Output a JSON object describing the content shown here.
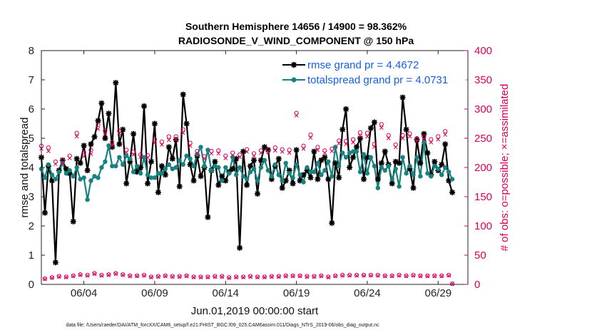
{
  "chart_data": {
    "type": "line",
    "title": "Southern Hemisphere 14656 / 14900 = 98.362%",
    "subtitle": "RADIOSONDE_V_WIND_COMPONENT @ 150 hPa",
    "xlabel": "Jun.01,2019 00:00:00 start",
    "ylabel": "rmse and totalspread",
    "y2label": "# of obs: o=possible; ×=assimilated",
    "footnote": "data file: /Users/raeder/DAI/ATM_forcXX/CAM6_setup/f.e21.FHIST_BGC.f09_025.CAM6assim.011/Diags_NTrS_2019-06/obs_diag_output.nc",
    "xlim": [
      1,
      31.1
    ],
    "ylim": [
      0,
      8
    ],
    "y2lim": [
      0,
      400
    ],
    "x_ticks": [
      4,
      9,
      14,
      19,
      24,
      29
    ],
    "x_tick_labels": [
      "06/04",
      "06/09",
      "06/14",
      "06/19",
      "06/24",
      "06/29"
    ],
    "y_ticks": [
      "0",
      "1",
      "2",
      "3",
      "4",
      "5",
      "6",
      "7",
      "8"
    ],
    "y2_ticks": [
      "0",
      "50",
      "100",
      "150",
      "200",
      "250",
      "300",
      "350",
      "400"
    ],
    "x_start": 1.0,
    "x_step": 0.25,
    "series": [
      {
        "name": "rmse grand pr = 4.4672",
        "color": "#000000",
        "values": [
          4.35,
          2.45,
          4.05,
          3.55,
          0.75,
          3.9,
          4.25,
          3.95,
          3.8,
          2.15,
          4.3,
          4.15,
          4.75,
          3.9,
          4.8,
          5.05,
          5.6,
          6.2,
          5.0,
          5.85,
          4.7,
          6.9,
          4.8,
          5.3,
          3.45,
          4.2,
          5.15,
          3.85,
          4.0,
          6.1,
          3.45,
          4.2,
          5.5,
          3.15,
          4.05,
          3.75,
          4.7,
          4.3,
          4.95,
          3.35,
          6.5,
          5.5,
          4.1,
          3.55,
          4.4,
          3.7,
          4.0,
          2.3,
          3.9,
          4.2,
          3.4,
          3.7,
          3.55,
          3.85,
          3.95,
          4.3,
          1.25,
          4.55,
          3.4,
          4.05,
          4.25,
          3.1,
          4.25,
          4.7,
          4.6,
          3.6,
          4.05,
          4.3,
          3.3,
          3.55,
          3.9,
          3.45,
          4.6,
          3.55,
          3.75,
          3.9,
          3.65,
          4.55,
          3.6,
          4.25,
          4.35,
          3.6,
          2.1,
          4.15,
          3.65,
          5.3,
          6.0,
          4.0,
          4.35,
          4.7,
          5.0,
          3.6,
          4.35,
          5.35,
          5.55,
          3.6,
          4.15,
          4.55,
          4.1,
          3.45,
          4.2,
          4.15,
          6.4,
          5.3,
          3.95,
          3.3,
          4.95,
          4.15,
          5.15,
          4.5,
          3.75,
          4.2,
          3.9,
          4.1,
          4.8,
          3.55,
          3.15
        ]
      },
      {
        "name": "totalspread grand pr = 4.0731",
        "color": "#17827f",
        "values": [
          3.95,
          3.65,
          4.1,
          3.75,
          3.6,
          3.85,
          4.15,
          3.8,
          3.9,
          3.7,
          4.0,
          3.6,
          3.65,
          2.9,
          3.55,
          3.7,
          3.65,
          4.0,
          4.2,
          4.75,
          4.05,
          4.05,
          4.35,
          4.1,
          4.4,
          4.3,
          3.85,
          4.05,
          3.8,
          4.35,
          3.75,
          3.65,
          3.65,
          3.8,
          3.8,
          3.95,
          4.1,
          3.95,
          4.0,
          4.25,
          4.1,
          4.4,
          4.3,
          4.05,
          4.45,
          4.7,
          4.05,
          4.6,
          3.9,
          4.05,
          4.0,
          3.55,
          4.0,
          3.8,
          4.35,
          3.75,
          4.0,
          3.7,
          3.6,
          3.85,
          3.95,
          3.55,
          4.0,
          4.25,
          3.9,
          3.7,
          4.1,
          3.75,
          3.55,
          4.15,
          3.8,
          3.65,
          4.1,
          3.75,
          3.5,
          4.0,
          3.85,
          3.85,
          4.15,
          3.75,
          3.9,
          4.2,
          3.7,
          4.7,
          4.05,
          4.5,
          4.35,
          4.5,
          4.55,
          4.55,
          3.85,
          4.45,
          3.8,
          4.35,
          4.05,
          3.3,
          4.0,
          3.9,
          4.05,
          3.6,
          3.95,
          3.35,
          4.35,
          3.8,
          4.05,
          3.75,
          4.35,
          3.7,
          4.85,
          3.8,
          3.7,
          4.05,
          3.95,
          3.75,
          4.0,
          3.85,
          3.6
        ]
      }
    ],
    "obs_possible": {
      "name": "# obs possible",
      "color": "#d6005a",
      "values": [
        237,
        10,
        234,
        12,
        210,
        14,
        212,
        13,
        220,
        15,
        259,
        17,
        226,
        16,
        230,
        19,
        273,
        16,
        263,
        17,
        243,
        19,
        263,
        17,
        230,
        15,
        227,
        15,
        222,
        16,
        221,
        13,
        248,
        14,
        244,
        15,
        253,
        14,
        253,
        14,
        265,
        15,
        242,
        13,
        228,
        13,
        219,
        13,
        228,
        14,
        229,
        14,
        220,
        12,
        225,
        13,
        222,
        13,
        231,
        14,
        224,
        13,
        229,
        13,
        231,
        14,
        234,
        14,
        231,
        15,
        230,
        15,
        293,
        15,
        237,
        14,
        256,
        14,
        235,
        15,
        229,
        13,
        232,
        15,
        246,
        16,
        245,
        16,
        248,
        16,
        260,
        16,
        259,
        16,
        240,
        16,
        274,
        15,
        255,
        15,
        239,
        16,
        255,
        15,
        258,
        16,
        250,
        15,
        253,
        15,
        248,
        15,
        253,
        15,
        262,
        16,
        1
      ]
    },
    "obs_assimilated": {
      "name": "# obs assimilated",
      "color": "#d6005a",
      "values": [
        232,
        9,
        228,
        11,
        206,
        13,
        207,
        12,
        216,
        14,
        253,
        16,
        219,
        15,
        223,
        18,
        266,
        15,
        257,
        16,
        238,
        18,
        258,
        16,
        226,
        14,
        222,
        14,
        218,
        15,
        217,
        12,
        242,
        13,
        239,
        14,
        247,
        13,
        248,
        13,
        259,
        14,
        237,
        12,
        224,
        12,
        215,
        12,
        224,
        13,
        224,
        13,
        216,
        11,
        221,
        12,
        218,
        12,
        227,
        13,
        220,
        12,
        225,
        12,
        226,
        13,
        229,
        13,
        227,
        14,
        225,
        14,
        289,
        14,
        232,
        13,
        251,
        13,
        230,
        14,
        225,
        12,
        228,
        14,
        241,
        15,
        240,
        15,
        243,
        15,
        254,
        15,
        253,
        15,
        235,
        15,
        268,
        14,
        250,
        14,
        235,
        15,
        250,
        14,
        253,
        15,
        245,
        14,
        248,
        14,
        243,
        14,
        248,
        14,
        256,
        15,
        1
      ]
    },
    "legend_position": "top-right"
  }
}
